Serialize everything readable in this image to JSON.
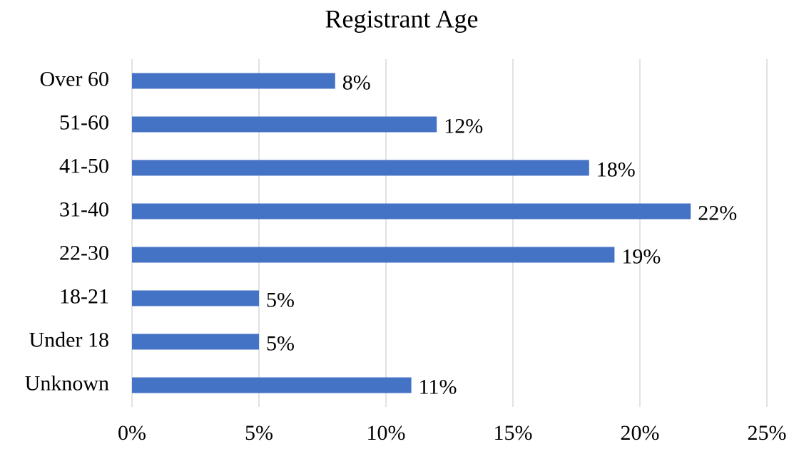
{
  "chart_data": {
    "type": "hbar",
    "title": "Registrant Age",
    "categories": [
      "Over 60",
      "51-60",
      "41-50",
      "31-40",
      "22-30",
      "18-21",
      "Under 18",
      "Unknown"
    ],
    "values": [
      8,
      12,
      18,
      22,
      19,
      5,
      5,
      11
    ],
    "value_labels": [
      "8%",
      "12%",
      "18%",
      "22%",
      "19%",
      "5%",
      "5%",
      "11%"
    ],
    "color": "#4472c4",
    "xlim": [
      0,
      25
    ],
    "xticks": [
      {
        "value": 0,
        "label": "0%"
      },
      {
        "value": 5,
        "label": "5%"
      },
      {
        "value": 10,
        "label": "10%"
      },
      {
        "value": 15,
        "label": "15%"
      },
      {
        "value": 20,
        "label": "20%"
      },
      {
        "value": 25,
        "label": "25%"
      }
    ],
    "grid": true
  }
}
